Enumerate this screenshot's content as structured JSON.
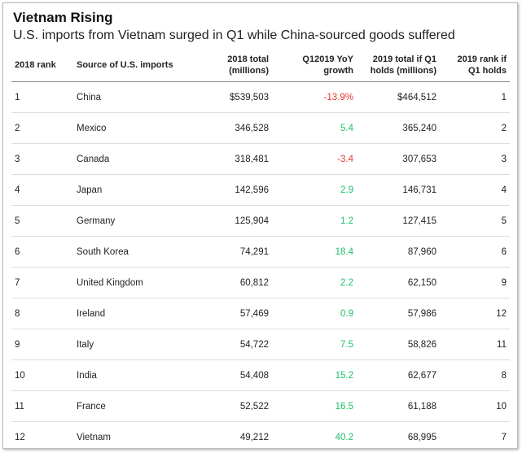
{
  "header": {
    "title": "Vietnam Rising",
    "subtitle": "U.S. imports from Vietnam surged in Q1 while China-sourced goods suffered"
  },
  "table": {
    "columns": [
      "2018 rank",
      "Source of U.S. imports",
      "2018 total (millions)",
      "Q12019 YoY growth",
      "2019 total if Q1 holds (millions)",
      "2019 rank if Q1 holds"
    ],
    "rows": [
      [
        "1",
        "China",
        "$539,503",
        "-13.9%",
        "$464,512",
        "1"
      ],
      [
        "2",
        "Mexico",
        "346,528",
        "5.4",
        "365,240",
        "2"
      ],
      [
        "3",
        "Canada",
        "318,481",
        "-3.4",
        "307,653",
        "3"
      ],
      [
        "4",
        "Japan",
        "142,596",
        "2.9",
        "146,731",
        "4"
      ],
      [
        "5",
        "Germany",
        "125,904",
        "1.2",
        "127,415",
        "5"
      ],
      [
        "6",
        "South Korea",
        "74,291",
        "18.4",
        "87,960",
        "6"
      ],
      [
        "7",
        "United Kingdom",
        "60,812",
        "2.2",
        "62,150",
        "9"
      ],
      [
        "8",
        "Ireland",
        "57,469",
        "0.9",
        "57,986",
        "12"
      ],
      [
        "9",
        "Italy",
        "54,722",
        "7.5",
        "58,826",
        "11"
      ],
      [
        "10",
        "India",
        "54,408",
        "15.2",
        "62,677",
        "8"
      ],
      [
        "11",
        "France",
        "52,522",
        "16.5",
        "61,188",
        "10"
      ],
      [
        "12",
        "Vietnam",
        "49,212",
        "40.2",
        "68,995",
        "7"
      ]
    ]
  }
}
